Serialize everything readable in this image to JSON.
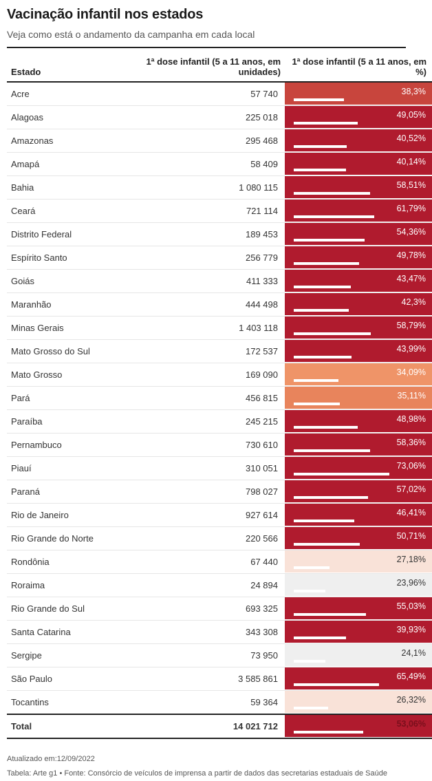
{
  "title": "Vacinação infantil nos estados",
  "subtitle": "Veja como está o andamento da campanha em cada local",
  "chart_data": {
    "type": "table",
    "columns": [
      "Estado",
      "1ª dose infantil (5 a 11 anos, em unidades)",
      "1ª dose infantil (5 a 11 anos, em %)"
    ],
    "rows": [
      {
        "estado": "Acre",
        "doses": "57 740",
        "pct_label": "38,3%",
        "pct": 38.3,
        "color": "#c8453d",
        "text_color": "#ffffff"
      },
      {
        "estado": "Alagoas",
        "doses": "225 018",
        "pct_label": "49,05%",
        "pct": 49.05,
        "color": "#b01b2e",
        "text_color": "#ffffff"
      },
      {
        "estado": "Amazonas",
        "doses": "295 468",
        "pct_label": "40,52%",
        "pct": 40.52,
        "color": "#b01b2e",
        "text_color": "#ffffff"
      },
      {
        "estado": "Amapá",
        "doses": "58 409",
        "pct_label": "40,14%",
        "pct": 40.14,
        "color": "#b01b2e",
        "text_color": "#ffffff"
      },
      {
        "estado": "Bahia",
        "doses": "1 080 115",
        "pct_label": "58,51%",
        "pct": 58.51,
        "color": "#b01b2e",
        "text_color": "#ffffff"
      },
      {
        "estado": "Ceará",
        "doses": "721 114",
        "pct_label": "61,79%",
        "pct": 61.79,
        "color": "#b01b2e",
        "text_color": "#ffffff"
      },
      {
        "estado": "Distrito Federal",
        "doses": "189 453",
        "pct_label": "54,36%",
        "pct": 54.36,
        "color": "#b01b2e",
        "text_color": "#ffffff"
      },
      {
        "estado": "Espírito Santo",
        "doses": "256 779",
        "pct_label": "49,78%",
        "pct": 49.78,
        "color": "#b01b2e",
        "text_color": "#ffffff"
      },
      {
        "estado": "Goiás",
        "doses": "411 333",
        "pct_label": "43,47%",
        "pct": 43.47,
        "color": "#b01b2e",
        "text_color": "#ffffff"
      },
      {
        "estado": "Maranhão",
        "doses": "444 498",
        "pct_label": "42,3%",
        "pct": 42.3,
        "color": "#b01b2e",
        "text_color": "#ffffff"
      },
      {
        "estado": "Minas Gerais",
        "doses": "1 403 118",
        "pct_label": "58,79%",
        "pct": 58.79,
        "color": "#b01b2e",
        "text_color": "#ffffff"
      },
      {
        "estado": "Mato Grosso do Sul",
        "doses": "172 537",
        "pct_label": "43,99%",
        "pct": 43.99,
        "color": "#b01b2e",
        "text_color": "#ffffff"
      },
      {
        "estado": "Mato Grosso",
        "doses": "169 090",
        "pct_label": "34,09%",
        "pct": 34.09,
        "color": "#ef9468",
        "text_color": "#ffffff"
      },
      {
        "estado": "Pará",
        "doses": "456 815",
        "pct_label": "35,11%",
        "pct": 35.11,
        "color": "#e8845c",
        "text_color": "#ffffff"
      },
      {
        "estado": "Paraíba",
        "doses": "245 215",
        "pct_label": "48,98%",
        "pct": 48.98,
        "color": "#b01b2e",
        "text_color": "#ffffff"
      },
      {
        "estado": "Pernambuco",
        "doses": "730 610",
        "pct_label": "58,36%",
        "pct": 58.36,
        "color": "#b01b2e",
        "text_color": "#ffffff"
      },
      {
        "estado": "Piauí",
        "doses": "310 051",
        "pct_label": "73,06%",
        "pct": 73.06,
        "color": "#b01b2e",
        "text_color": "#ffffff"
      },
      {
        "estado": "Paraná",
        "doses": "798 027",
        "pct_label": "57,02%",
        "pct": 57.02,
        "color": "#b01b2e",
        "text_color": "#ffffff"
      },
      {
        "estado": "Rio de Janeiro",
        "doses": "927 614",
        "pct_label": "46,41%",
        "pct": 46.41,
        "color": "#b01b2e",
        "text_color": "#ffffff"
      },
      {
        "estado": "Rio Grande do Norte",
        "doses": "220 566",
        "pct_label": "50,71%",
        "pct": 50.71,
        "color": "#b01b2e",
        "text_color": "#ffffff"
      },
      {
        "estado": "Rondônia",
        "doses": "67 440",
        "pct_label": "27,18%",
        "pct": 27.18,
        "color": "#f9e2d8",
        "text_color": "#333333"
      },
      {
        "estado": "Roraima",
        "doses": "24 894",
        "pct_label": "23,96%",
        "pct": 23.96,
        "color": "#efefef",
        "text_color": "#333333"
      },
      {
        "estado": "Rio Grande do Sul",
        "doses": "693 325",
        "pct_label": "55,03%",
        "pct": 55.03,
        "color": "#b01b2e",
        "text_color": "#ffffff"
      },
      {
        "estado": "Santa Catarina",
        "doses": "343 308",
        "pct_label": "39,93%",
        "pct": 39.93,
        "color": "#b01b2e",
        "text_color": "#ffffff"
      },
      {
        "estado": "Sergipe",
        "doses": "73 950",
        "pct_label": "24,1%",
        "pct": 24.1,
        "color": "#efefef",
        "text_color": "#333333"
      },
      {
        "estado": "São Paulo",
        "doses": "3 585 861",
        "pct_label": "65,49%",
        "pct": 65.49,
        "color": "#b01b2e",
        "text_color": "#ffffff"
      },
      {
        "estado": "Tocantins",
        "doses": "59 364",
        "pct_label": "26,32%",
        "pct": 26.32,
        "color": "#f9e2d8",
        "text_color": "#333333"
      }
    ],
    "total": {
      "estado": "Total",
      "doses": "14 021 712",
      "pct_label": "53,06%",
      "pct": 53.06,
      "color": "#b01b2e",
      "text_color": "#7a0f1c"
    },
    "bar_scale_max": 100
  },
  "footer": {
    "updated": "Atualizado em:12/09/2022",
    "source": "Tabela: Arte g1 • Fonte: Consórcio de veículos de imprensa a partir de dados das secretarias estaduais de Saúde"
  }
}
